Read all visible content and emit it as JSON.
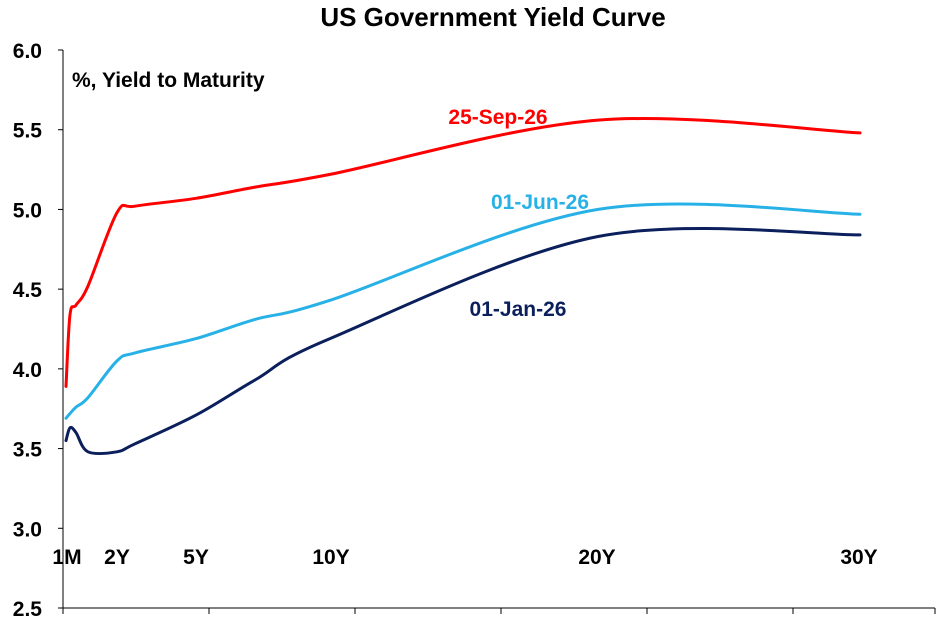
{
  "chart_data": {
    "type": "line",
    "title": "US Government Yield Curve",
    "ylabel": "%, Yield to Maturity",
    "xlabel": "",
    "ylim": [
      2.5,
      6.0
    ],
    "y_ticks": [
      "6.0",
      "5.5",
      "5.0",
      "4.5",
      "4.0",
      "3.5",
      "3.0",
      "2.5"
    ],
    "xlim_years": [
      0,
      30
    ],
    "x_tick_labels": [
      {
        "label": "1M",
        "years": 0.0833
      },
      {
        "label": "2Y",
        "years": 2
      },
      {
        "label": "5Y",
        "years": 5
      },
      {
        "label": "10Y",
        "years": 10
      },
      {
        "label": "20Y",
        "years": 20
      },
      {
        "label": "30Y",
        "years": 30
      }
    ],
    "grid": false,
    "legend": "inline labels",
    "series": [
      {
        "name": "25-Sep-26",
        "color": "#ff0000",
        "x": [
          0.0833,
          0.25,
          0.5,
          1,
          2,
          3,
          5,
          7,
          10,
          20,
          30
        ],
        "values": [
          3.89,
          4.34,
          4.4,
          4.52,
          4.98,
          5.02,
          5.07,
          5.14,
          5.22,
          5.56,
          5.48
        ]
      },
      {
        "name": "01-Jun-26",
        "color": "#27b1e6",
        "x": [
          0.0833,
          0.25,
          0.5,
          1,
          2,
          3,
          5,
          7,
          10,
          20,
          30
        ],
        "values": [
          3.69,
          3.72,
          3.76,
          3.82,
          4.05,
          4.1,
          4.19,
          4.31,
          4.43,
          5.0,
          4.97
        ]
      },
      {
        "name": "01-Jan-26",
        "color": "#0b1f5c",
        "x": [
          0.0833,
          0.25,
          0.5,
          1,
          2,
          3,
          5,
          7,
          10,
          20,
          30
        ],
        "values": [
          3.55,
          3.63,
          3.6,
          3.48,
          3.48,
          3.53,
          3.71,
          3.93,
          4.19,
          4.83,
          4.84
        ]
      }
    ]
  }
}
